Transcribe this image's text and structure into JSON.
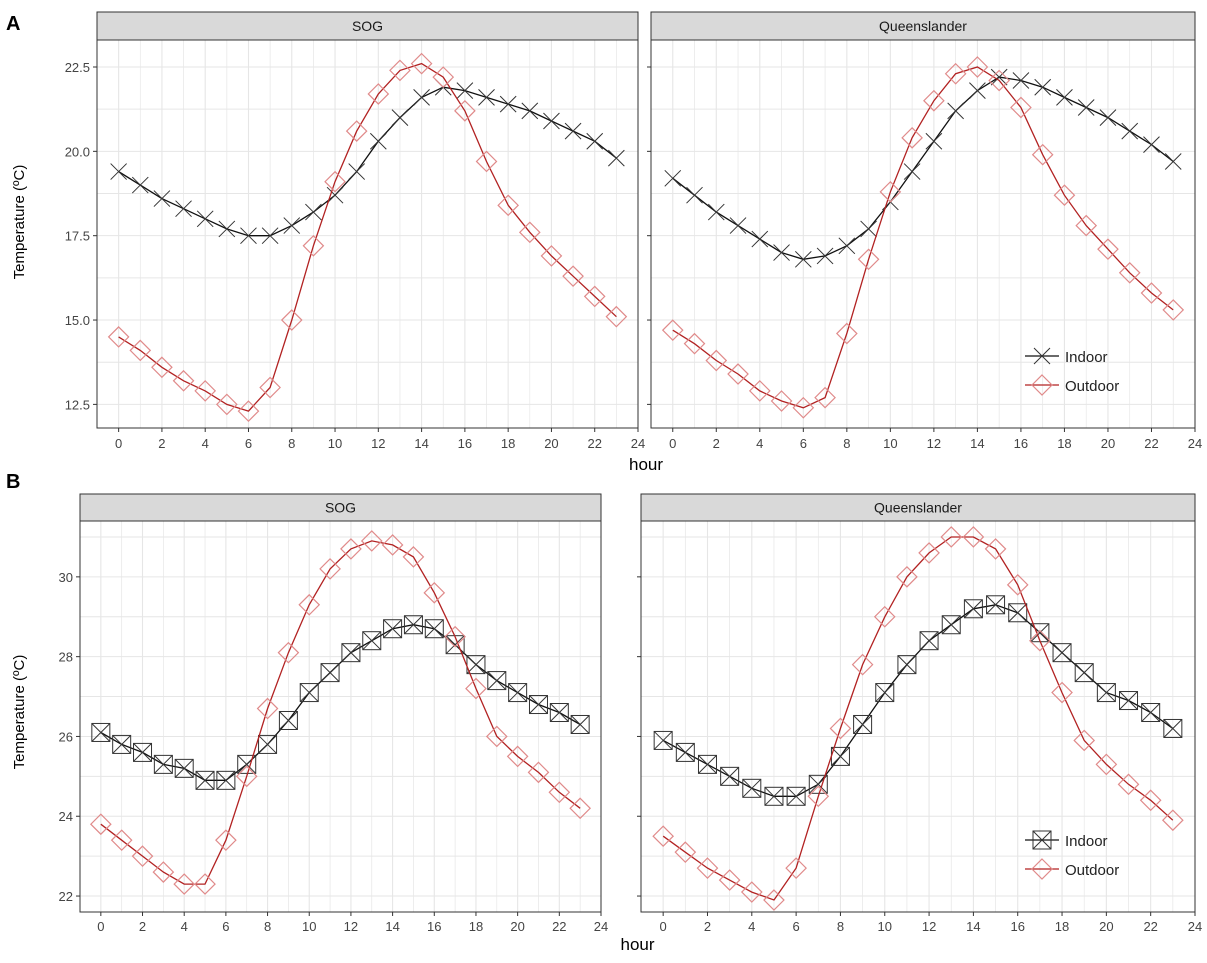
{
  "colors": {
    "indoor": "#111111",
    "outdoor": "#b22222",
    "outdoor_marker": "#e08a8a",
    "strip_bg": "#d9d9d9",
    "grid": "#e6e6e6"
  },
  "chart_data": [
    {
      "id": "A",
      "type": "line",
      "panel_label": "A",
      "ylabel": "Temperature (ºC)",
      "xlabel": "hour",
      "xlim": [
        -1,
        24
      ],
      "ylim": [
        11.8,
        23.3
      ],
      "xticks": [
        0,
        2,
        4,
        6,
        8,
        10,
        12,
        14,
        16,
        18,
        20,
        22,
        24
      ],
      "yticks": [
        12.5,
        15.0,
        17.5,
        20.0,
        22.5
      ],
      "ytick_labels": [
        "12.5",
        "15.0",
        "17.5",
        "20.0",
        "22.5"
      ],
      "grid": true,
      "legend_position": "bottom-right of the right panel",
      "legend": [
        {
          "name": "Indoor",
          "marker": "x"
        },
        {
          "name": "Outdoor",
          "marker": "diamond"
        }
      ],
      "facets": [
        {
          "strip": "SOG",
          "x": [
            0,
            1,
            2,
            3,
            4,
            5,
            6,
            7,
            8,
            9,
            10,
            11,
            12,
            13,
            14,
            15,
            16,
            17,
            18,
            19,
            20,
            21,
            22,
            23
          ],
          "series": [
            {
              "name": "Indoor",
              "marker": "x",
              "values": [
                19.4,
                19.0,
                18.6,
                18.3,
                18.0,
                17.7,
                17.5,
                17.5,
                17.8,
                18.2,
                18.7,
                19.4,
                20.3,
                21.0,
                21.6,
                21.9,
                21.8,
                21.6,
                21.4,
                21.2,
                20.9,
                20.6,
                20.3,
                19.8
              ]
            },
            {
              "name": "Outdoor",
              "marker": "diamond",
              "values": [
                14.5,
                14.1,
                13.6,
                13.2,
                12.9,
                12.5,
                12.3,
                13.0,
                15.0,
                17.2,
                19.1,
                20.6,
                21.7,
                22.4,
                22.6,
                22.2,
                21.2,
                19.7,
                18.4,
                17.6,
                16.9,
                16.3,
                15.7,
                15.1
              ]
            }
          ]
        },
        {
          "strip": "Queenslander",
          "x": [
            0,
            1,
            2,
            3,
            4,
            5,
            6,
            7,
            8,
            9,
            10,
            11,
            12,
            13,
            14,
            15,
            16,
            17,
            18,
            19,
            20,
            21,
            22,
            23
          ],
          "series": [
            {
              "name": "Indoor",
              "marker": "x",
              "values": [
                19.2,
                18.7,
                18.2,
                17.8,
                17.4,
                17.0,
                16.8,
                16.9,
                17.2,
                17.7,
                18.5,
                19.4,
                20.3,
                21.2,
                21.8,
                22.2,
                22.1,
                21.9,
                21.6,
                21.3,
                21.0,
                20.6,
                20.2,
                19.7
              ]
            },
            {
              "name": "Outdoor",
              "marker": "diamond",
              "values": [
                14.7,
                14.3,
                13.8,
                13.4,
                12.9,
                12.6,
                12.4,
                12.7,
                14.6,
                16.8,
                18.8,
                20.4,
                21.5,
                22.3,
                22.5,
                22.1,
                21.3,
                19.9,
                18.7,
                17.8,
                17.1,
                16.4,
                15.8,
                15.3
              ]
            }
          ]
        }
      ]
    },
    {
      "id": "B",
      "type": "line",
      "panel_label": "B",
      "ylabel": "Temperature (ºC)",
      "xlabel": "hour",
      "xlim": [
        -1,
        24
      ],
      "ylim": [
        21.6,
        31.4
      ],
      "xticks": [
        0,
        2,
        4,
        6,
        8,
        10,
        12,
        14,
        16,
        18,
        20,
        22,
        24
      ],
      "yticks": [
        22,
        24,
        26,
        28,
        30
      ],
      "ytick_labels": [
        "22",
        "24",
        "26",
        "28",
        "30"
      ],
      "grid": true,
      "legend_position": "bottom-right of the right panel",
      "legend": [
        {
          "name": "Indoor",
          "marker": "boxed-x"
        },
        {
          "name": "Outdoor",
          "marker": "diamond"
        }
      ],
      "facets": [
        {
          "strip": "SOG",
          "x": [
            0,
            1,
            2,
            3,
            4,
            5,
            6,
            7,
            8,
            9,
            10,
            11,
            12,
            13,
            14,
            15,
            16,
            17,
            18,
            19,
            20,
            21,
            22,
            23
          ],
          "series": [
            {
              "name": "Indoor",
              "marker": "boxed-x",
              "values": [
                26.1,
                25.8,
                25.6,
                25.3,
                25.2,
                24.9,
                24.9,
                25.3,
                25.8,
                26.4,
                27.1,
                27.6,
                28.1,
                28.4,
                28.7,
                28.8,
                28.7,
                28.3,
                27.8,
                27.4,
                27.1,
                26.8,
                26.6,
                26.3
              ]
            },
            {
              "name": "Outdoor",
              "marker": "diamond",
              "values": [
                23.8,
                23.4,
                23.0,
                22.6,
                22.3,
                22.3,
                23.4,
                25.0,
                26.7,
                28.1,
                29.3,
                30.2,
                30.7,
                30.9,
                30.8,
                30.5,
                29.6,
                28.5,
                27.2,
                26.0,
                25.5,
                25.1,
                24.6,
                24.2
              ]
            }
          ]
        },
        {
          "strip": "Queenslander",
          "x": [
            0,
            1,
            2,
            3,
            4,
            5,
            6,
            7,
            8,
            9,
            10,
            11,
            12,
            13,
            14,
            15,
            16,
            17,
            18,
            19,
            20,
            21,
            22,
            23
          ],
          "series": [
            {
              "name": "Indoor",
              "marker": "boxed-x",
              "values": [
                25.9,
                25.6,
                25.3,
                25.0,
                24.7,
                24.5,
                24.5,
                24.8,
                25.5,
                26.3,
                27.1,
                27.8,
                28.4,
                28.8,
                29.2,
                29.3,
                29.1,
                28.6,
                28.1,
                27.6,
                27.1,
                26.9,
                26.6,
                26.2
              ]
            },
            {
              "name": "Outdoor",
              "marker": "diamond",
              "values": [
                23.5,
                23.1,
                22.7,
                22.4,
                22.1,
                21.9,
                22.7,
                24.5,
                26.2,
                27.8,
                29.0,
                30.0,
                30.6,
                31.0,
                31.0,
                30.7,
                29.8,
                28.4,
                27.1,
                25.9,
                25.3,
                24.8,
                24.4,
                23.9
              ]
            }
          ]
        }
      ]
    }
  ]
}
